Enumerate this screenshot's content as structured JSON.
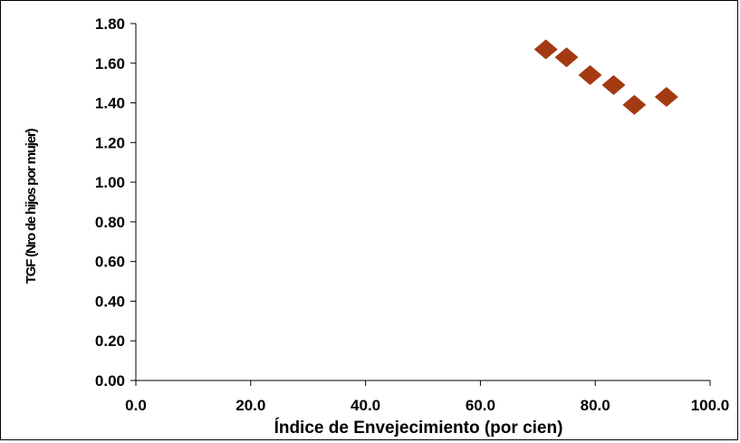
{
  "chart_data": {
    "type": "scatter",
    "title": "",
    "xlabel": "Índice de Envejecimiento (por cien)",
    "ylabel": "TGF (Nro de hijos por mujer)",
    "xlim": [
      0,
      100
    ],
    "ylim": [
      0,
      1.8
    ],
    "x_ticks": [
      "0.0",
      "20.0",
      "40.0",
      "60.0",
      "80.0",
      "100.0"
    ],
    "y_ticks": [
      "0.00",
      "0.20",
      "0.40",
      "0.60",
      "0.80",
      "1.00",
      "1.20",
      "1.40",
      "1.60",
      "1.80"
    ],
    "grid": false,
    "legend": "none",
    "marker": "diamond",
    "marker_color": "#A33A12",
    "series": [
      {
        "points": [
          {
            "x": 71.4,
            "y": 1.67
          },
          {
            "x": 75.0,
            "y": 1.63
          },
          {
            "x": 79.1,
            "y": 1.54
          },
          {
            "x": 83.2,
            "y": 1.49
          },
          {
            "x": 86.8,
            "y": 1.39
          },
          {
            "x": 92.4,
            "y": 1.43
          }
        ]
      }
    ]
  }
}
